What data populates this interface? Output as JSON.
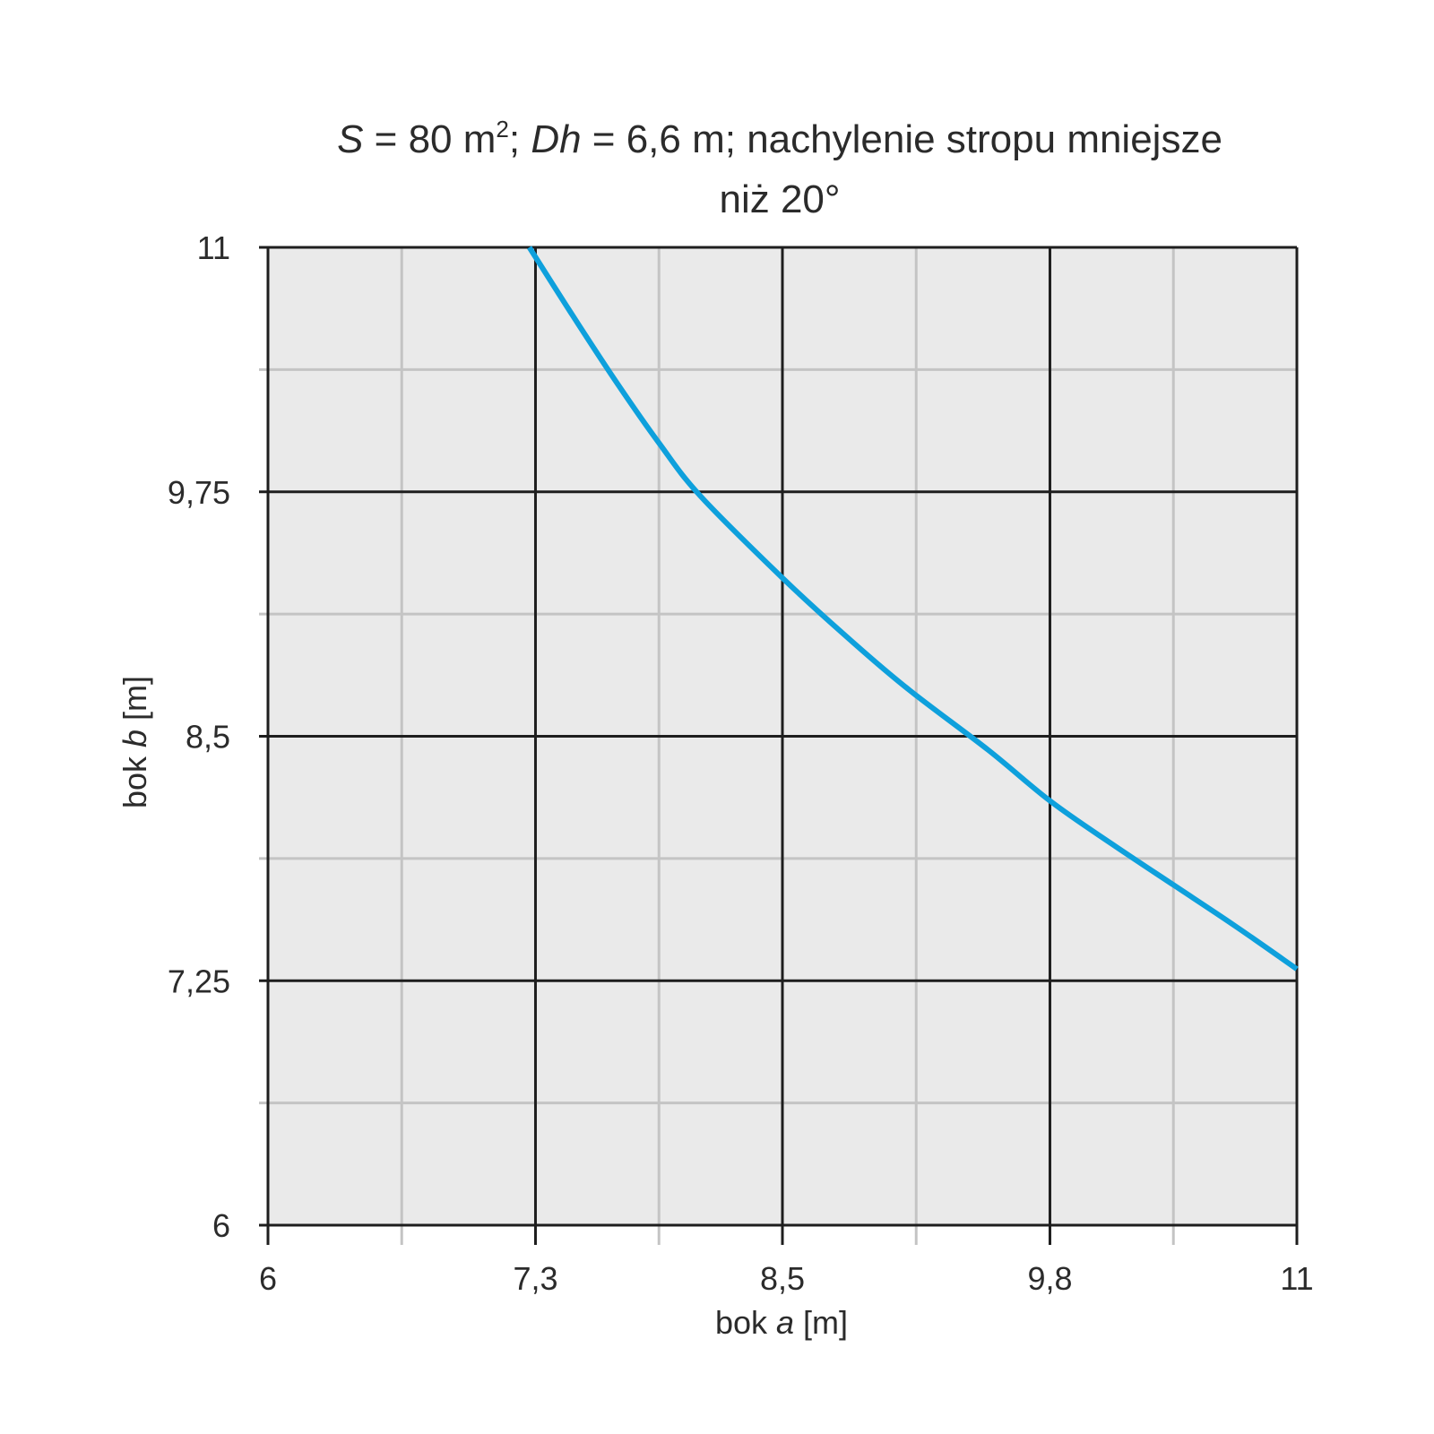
{
  "chart_data": {
    "type": "line",
    "title_line1": {
      "s_var": "S",
      "s_eq": " = 80 m",
      "s_sup": "2",
      "sep": "; ",
      "dh_var": "Dh",
      "rest": " = 6,6 m; nachylenie stropu mniejsze"
    },
    "title_line2": "niż 20°",
    "xlabel": {
      "prefix": "bok ",
      "var": "a",
      "suffix": " [m]"
    },
    "ylabel": {
      "prefix": "bok ",
      "var": "b",
      "suffix": " [m]"
    },
    "xlim": [
      6,
      11
    ],
    "ylim": [
      6,
      11
    ],
    "x_ticks": [
      6,
      7.3,
      8.5,
      9.8,
      11
    ],
    "x_tick_labels": [
      "6",
      "7,3",
      "8,5",
      "9,8",
      "11"
    ],
    "y_ticks": [
      6,
      7.25,
      8.5,
      9.75,
      11
    ],
    "y_tick_labels": [
      "6",
      "7,25",
      "8,5",
      "9,75",
      "11"
    ],
    "grid": true,
    "colors": {
      "plot_background": "#eaeaea",
      "major_grid": "#1e1e1e",
      "minor_grid": "#c4c4c4",
      "series": "#0ea0dc"
    },
    "series": [
      {
        "x": [
          7.27,
          7.5,
          7.7,
          7.9,
          8.1,
          8.5,
          8.8,
          9.1,
          9.5,
          9.8,
          10.1,
          10.4,
          10.7,
          11.0
        ],
        "y": [
          11.0,
          10.62,
          10.3,
          10.0,
          9.73,
          9.31,
          9.02,
          8.75,
          8.43,
          8.17,
          7.95,
          7.74,
          7.53,
          7.31
        ]
      }
    ]
  }
}
